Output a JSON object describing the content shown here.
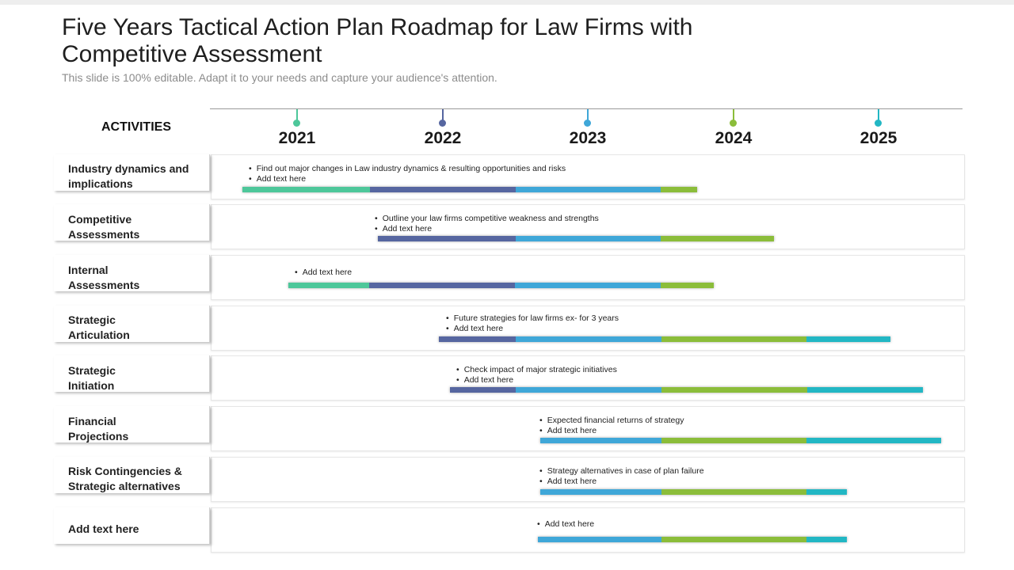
{
  "title": "Five Years Tactical Action Plan Roadmap for Law Firms with Competitive Assessment",
  "subtitle": "This slide is 100% editable. Adapt it to your needs and capture your audience's attention.",
  "activities_header": "ACTIVITIES",
  "colors": {
    "green": "#4dc79a",
    "navy": "#5666a0",
    "blue": "#3fa7d8",
    "lime": "#8bbd3a",
    "teal": "#22b7c4"
  },
  "years": [
    {
      "label": "2021",
      "color": "#4dc79a"
    },
    {
      "label": "2022",
      "color": "#5666a0"
    },
    {
      "label": "2023",
      "color": "#3fa7d8"
    },
    {
      "label": "2024",
      "color": "#8bbd3a"
    },
    {
      "label": "2025",
      "color": "#22b7c4"
    }
  ],
  "rows": [
    {
      "activity_line1": "Industry dynamics and",
      "activity_line2": "implications",
      "bullets": [
        "Find out major changes in Law industry dynamics & resulting opportunities and risks",
        "Add text here"
      ]
    },
    {
      "activity_line1": "Competitive",
      "activity_line2": "Assessments",
      "bullets": [
        "Outline your law firms  competitive weakness and strengths",
        "Add text here"
      ]
    },
    {
      "activity_line1": "Internal",
      "activity_line2": "Assessments",
      "bullets": [
        "Add text here"
      ]
    },
    {
      "activity_line1": "Strategic",
      "activity_line2": "Articulation",
      "bullets": [
        "Future strategies for law firms ex- for 3 years",
        "Add text here"
      ]
    },
    {
      "activity_line1": "Strategic",
      "activity_line2": "Initiation",
      "bullets": [
        "Check impact of major strategic initiatives",
        "Add text here"
      ]
    },
    {
      "activity_line1": "Financial",
      "activity_line2": "Projections",
      "bullets": [
        "Expected financial returns of strategy",
        "Add text here"
      ]
    },
    {
      "activity_line1": "Risk Contingencies &",
      "activity_line2": "Strategic alternatives",
      "bullets": [
        "Strategy  alternatives in case of plan failure",
        "Add text here"
      ]
    },
    {
      "activity_line1": "Add text here",
      "activity_line2": "",
      "bullets": [
        "Add text here"
      ]
    }
  ]
}
